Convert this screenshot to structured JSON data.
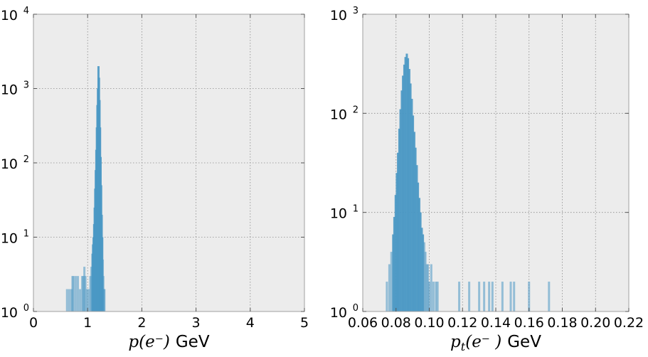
{
  "chart_data": [
    {
      "type": "histogram",
      "xlabel": "p(e⁻) GeV",
      "xlabel_parts": {
        "math": "p(e⁻)",
        "unit": "GeV"
      },
      "ylabel": "",
      "xlim": [
        0,
        5
      ],
      "ylim": [
        1,
        10000
      ],
      "yscale": "log",
      "grid": true,
      "x_ticks": [
        "0",
        "1",
        "2",
        "3",
        "4",
        "5"
      ],
      "y_ticks": [
        {
          "base": "10",
          "exp": "0"
        },
        {
          "base": "10",
          "exp": "1"
        },
        {
          "base": "10",
          "exp": "2"
        },
        {
          "base": "10",
          "exp": "3"
        },
        {
          "base": "10",
          "exp": "4"
        }
      ],
      "color": "#4a98c4",
      "background": "#ececec",
      "bins": [
        [
          0.62,
          2
        ],
        [
          0.66,
          2
        ],
        [
          0.7,
          2
        ],
        [
          0.72,
          3
        ],
        [
          0.74,
          3
        ],
        [
          0.78,
          3
        ],
        [
          0.82,
          3
        ],
        [
          0.86,
          2
        ],
        [
          0.9,
          3
        ],
        [
          0.92,
          3
        ],
        [
          0.94,
          4
        ],
        [
          0.96,
          3
        ],
        [
          0.99,
          2
        ],
        [
          1.02,
          2
        ],
        [
          1.05,
          3
        ],
        [
          1.07,
          4
        ],
        [
          1.09,
          6
        ],
        [
          1.1,
          8
        ],
        [
          1.11,
          10
        ],
        [
          1.12,
          15
        ],
        [
          1.13,
          25
        ],
        [
          1.14,
          45
        ],
        [
          1.15,
          80
        ],
        [
          1.16,
          150
        ],
        [
          1.17,
          300
        ],
        [
          1.18,
          600
        ],
        [
          1.19,
          1000
        ],
        [
          1.2,
          2000
        ],
        [
          1.21,
          1400
        ],
        [
          1.22,
          700
        ],
        [
          1.23,
          300
        ],
        [
          1.24,
          120
        ],
        [
          1.25,
          50
        ],
        [
          1.26,
          20
        ],
        [
          1.27,
          10
        ],
        [
          1.28,
          5
        ],
        [
          1.29,
          3
        ],
        [
          1.3,
          2
        ],
        [
          1.31,
          2
        ]
      ]
    },
    {
      "type": "histogram",
      "xlabel": "pₜ(e⁻ ) GeV",
      "xlabel_parts": {
        "math": "p",
        "sub": "t",
        "math2": "(e⁻ )",
        "unit": "GeV"
      },
      "ylabel": "",
      "xlim": [
        0.06,
        0.22
      ],
      "ylim": [
        1,
        1000
      ],
      "yscale": "log",
      "grid": true,
      "x_ticks": [
        "0.06",
        "0.08",
        "0.10",
        "0.12",
        "0.14",
        "0.16",
        "0.18",
        "0.20",
        "0.22"
      ],
      "y_ticks": [
        {
          "base": "10",
          "exp": "0"
        },
        {
          "base": "10",
          "exp": "1"
        },
        {
          "base": "10",
          "exp": "2"
        },
        {
          "base": "10",
          "exp": "3"
        }
      ],
      "color": "#4a98c4",
      "background": "#ececec",
      "bins": [
        [
          0.0745,
          2
        ],
        [
          0.076,
          3
        ],
        [
          0.0772,
          4
        ],
        [
          0.0783,
          6
        ],
        [
          0.079,
          9
        ],
        [
          0.0798,
          15
        ],
        [
          0.0805,
          25
        ],
        [
          0.0812,
          40
        ],
        [
          0.082,
          70
        ],
        [
          0.0827,
          110
        ],
        [
          0.0835,
          170
        ],
        [
          0.0842,
          240
        ],
        [
          0.085,
          310
        ],
        [
          0.0857,
          370
        ],
        [
          0.0865,
          400
        ],
        [
          0.0872,
          360
        ],
        [
          0.088,
          280
        ],
        [
          0.0887,
          200
        ],
        [
          0.0895,
          140
        ],
        [
          0.0902,
          95
        ],
        [
          0.091,
          65
        ],
        [
          0.0917,
          45
        ],
        [
          0.0925,
          30
        ],
        [
          0.0932,
          20
        ],
        [
          0.094,
          14
        ],
        [
          0.0947,
          10
        ],
        [
          0.0955,
          7
        ],
        [
          0.0962,
          6
        ],
        [
          0.097,
          5
        ],
        [
          0.0977,
          4
        ],
        [
          0.0985,
          3
        ],
        [
          0.0992,
          3
        ],
        [
          0.1,
          2
        ],
        [
          0.1012,
          3
        ],
        [
          0.1025,
          2
        ],
        [
          0.104,
          2
        ],
        [
          0.105,
          2
        ],
        [
          0.118,
          2
        ],
        [
          0.124,
          2
        ],
        [
          0.13,
          2
        ],
        [
          0.133,
          2
        ],
        [
          0.136,
          2
        ],
        [
          0.138,
          2
        ],
        [
          0.144,
          2
        ],
        [
          0.149,
          2
        ],
        [
          0.151,
          2
        ],
        [
          0.16,
          2
        ],
        [
          0.172,
          2
        ]
      ]
    }
  ]
}
